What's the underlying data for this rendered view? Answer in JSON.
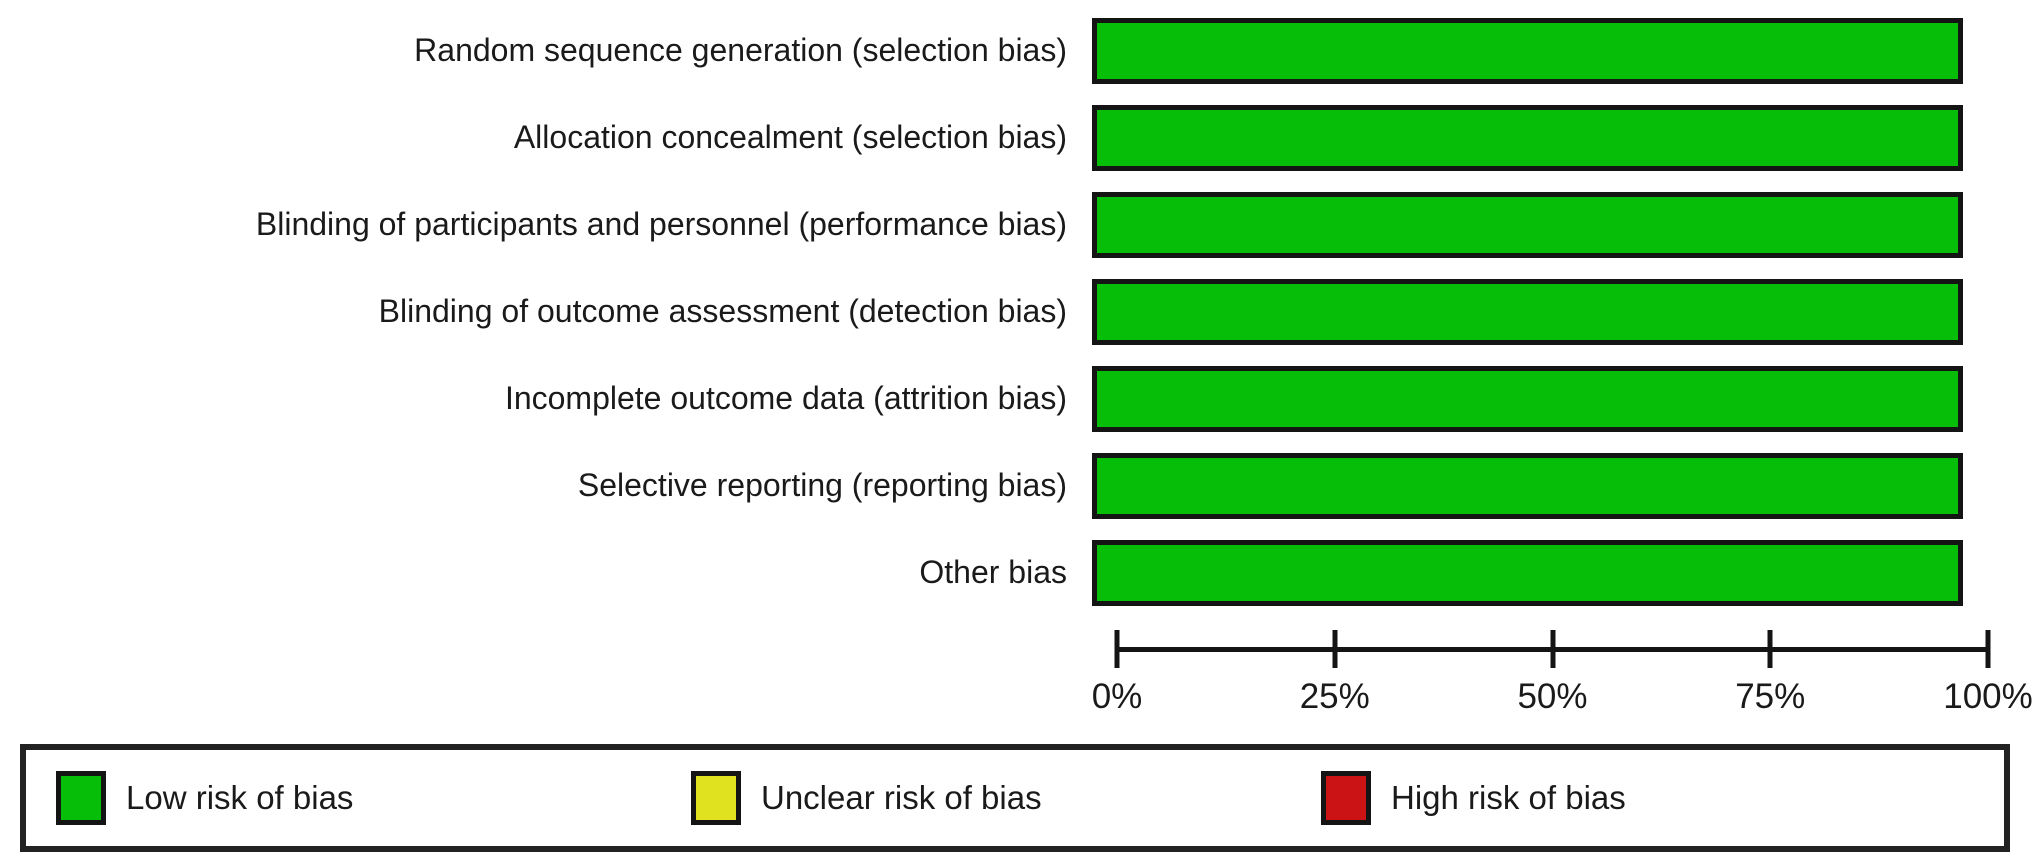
{
  "chart_data": {
    "type": "bar",
    "orientation": "horizontal",
    "title": "",
    "categories": [
      "Random sequence generation (selection bias)",
      "Allocation concealment (selection bias)",
      "Blinding of participants and personnel (performance bias)",
      "Blinding of outcome assessment (detection bias)",
      "Incomplete outcome data (attrition bias)",
      "Selective reporting (reporting bias)",
      "Other bias"
    ],
    "series": [
      {
        "name": "Low risk of bias",
        "color": "#06BE08",
        "values": [
          100,
          100,
          100,
          100,
          100,
          100,
          100
        ]
      },
      {
        "name": "Unclear risk of bias",
        "color": "#E0E11F",
        "values": [
          0,
          0,
          0,
          0,
          0,
          0,
          0
        ]
      },
      {
        "name": "High risk of bias",
        "color": "#CB1316",
        "values": [
          0,
          0,
          0,
          0,
          0,
          0,
          0
        ]
      }
    ],
    "x_axis": {
      "range": [
        0,
        100
      ],
      "ticks": [
        "0%",
        "25%",
        "50%",
        "75%",
        "100%"
      ],
      "tick_positions": [
        0,
        25,
        50,
        75,
        100
      ]
    },
    "grid": false,
    "legend_position": "bottom"
  },
  "legend": {
    "items": [
      {
        "label": "Low risk of bias",
        "color": "#06BE08"
      },
      {
        "label": "Unclear risk of bias",
        "color": "#E0E11F"
      },
      {
        "label": "High risk of bias",
        "color": "#CB1316"
      }
    ]
  },
  "colors": {
    "low_risk": "#06BE08",
    "unclear_risk": "#E0E11F",
    "high_risk": "#CB1316",
    "outline": "#141414",
    "text": "#1a1a1a"
  }
}
